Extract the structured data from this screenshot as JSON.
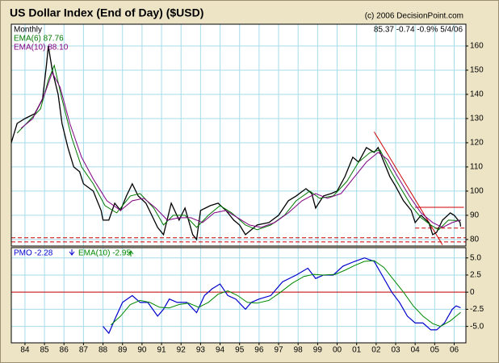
{
  "title": "US Dollar Index (End of Day) ($USD)",
  "copyright": "(c) 2006 DecisionPoint.com",
  "chart_data": [
    {
      "type": "line",
      "periodicity": "Monthly",
      "last_quote": "85.37 -0.74 -0.9% 5/4/06",
      "xlim": [
        1983.3,
        2006.6
      ],
      "xticks": [
        1984,
        1985,
        1986,
        1987,
        1988,
        1989,
        1990,
        1991,
        1992,
        1993,
        1994,
        1995,
        1996,
        1997,
        1998,
        1999,
        2000,
        2001,
        2002,
        2003,
        2004,
        2005,
        2006
      ],
      "ylim": [
        77.3,
        169
      ],
      "yticks": [
        80,
        90,
        100,
        110,
        120,
        130,
        140,
        150,
        160
      ],
      "grid": true,
      "series": [
        {
          "color": "#000000",
          "width": 1.3,
          "x": [
            1983.3,
            1983.6,
            1984.0,
            1984.5,
            1984.9,
            1985.1,
            1985.2,
            1985.4,
            1985.7,
            1985.9,
            1986.2,
            1986.5,
            1986.8,
            1987.0,
            1987.5,
            1987.9,
            1988.0,
            1988.3,
            1988.6,
            1988.9,
            1989.2,
            1989.5,
            1989.8,
            1990.2,
            1990.5,
            1990.8,
            1991.1,
            1991.5,
            1991.9,
            1992.2,
            1992.6,
            1992.8,
            1993.0,
            1993.5,
            1993.9,
            1994.3,
            1994.7,
            1995.0,
            1995.3,
            1995.6,
            1995.9,
            1996.5,
            1997.0,
            1997.5,
            1997.9,
            1998.4,
            1998.7,
            1998.9,
            1999.3,
            1999.7,
            2000.0,
            2000.4,
            2000.8,
            2001.1,
            2001.5,
            2001.9,
            2002.1,
            2002.4,
            2002.7,
            2003.0,
            2003.4,
            2003.8,
            2004.0,
            2004.3,
            2004.7,
            2004.9,
            2005.1,
            2005.4,
            2005.8,
            2006.0,
            2006.3,
            2006.33
          ],
          "values": [
            120,
            128,
            130,
            132,
            138,
            152,
            160,
            150,
            140,
            128,
            118,
            110,
            108,
            103,
            100,
            92,
            88,
            88,
            95,
            92,
            98,
            103,
            98,
            95,
            90,
            85,
            82,
            95,
            88,
            93,
            82,
            80,
            92,
            94,
            95,
            92,
            88,
            86,
            82,
            84,
            86,
            87,
            90,
            96,
            98,
            101,
            99,
            93,
            98,
            99,
            100,
            106,
            114,
            112,
            118,
            116,
            118,
            112,
            106,
            102,
            96,
            92,
            87,
            90,
            87,
            82,
            83,
            88,
            91,
            90,
            87,
            85.37
          ]
        },
        {
          "name": "EMA(6) 87.76",
          "color": "#007700",
          "width": 1,
          "x": [
            1983.6,
            1984.2,
            1984.8,
            1985.2,
            1985.5,
            1985.9,
            1986.4,
            1986.9,
            1987.5,
            1988.1,
            1988.7,
            1989.4,
            1989.9,
            1990.6,
            1991.1,
            1991.6,
            1992.2,
            1992.8,
            1993.4,
            1994.0,
            1994.6,
            1995.3,
            1995.9,
            1996.6,
            1997.3,
            1997.9,
            1998.6,
            1999.1,
            1999.8,
            2000.5,
            2001.1,
            2001.7,
            2002.2,
            2002.7,
            2003.2,
            2003.8,
            2004.3,
            2004.8,
            2005.2,
            2005.7,
            2006.33
          ],
          "values": [
            124,
            129,
            134,
            146,
            152,
            138,
            122,
            110,
            103,
            94,
            91,
            98,
            99,
            93,
            86,
            90,
            90,
            85,
            90,
            94,
            91,
            86,
            84,
            86,
            90,
            96,
            100,
            97,
            98,
            104,
            112,
            116,
            117,
            109,
            102,
            94,
            89,
            86,
            84,
            88,
            87.76
          ]
        },
        {
          "name": "EMA(10) 88.10",
          "color": "#800080",
          "width": 1,
          "x": [
            1983.8,
            1984.4,
            1985.0,
            1985.4,
            1985.8,
            1986.3,
            1986.9,
            1987.5,
            1988.2,
            1988.9,
            1989.5,
            1990.1,
            1990.7,
            1991.3,
            1991.9,
            1992.5,
            1993.1,
            1993.7,
            1994.3,
            1994.9,
            1995.5,
            1996.1,
            1996.8,
            1997.5,
            1998.2,
            1998.9,
            1999.5,
            2000.2,
            2000.9,
            2001.5,
            2002.1,
            2002.6,
            2003.1,
            2003.7,
            2004.3,
            2004.9,
            2005.4,
            2005.9,
            2006.33
          ],
          "values": [
            126,
            130,
            140,
            149,
            143,
            128,
            114,
            105,
            96,
            92,
            96,
            97,
            93,
            88,
            89,
            89,
            87,
            91,
            92,
            89,
            86,
            85,
            87,
            91,
            96,
            99,
            97,
            99,
            106,
            112,
            116,
            113,
            106,
            98,
            91,
            87,
            85,
            87,
            88.1
          ]
        }
      ],
      "reference_lines": [
        {
          "color": "#cc0000",
          "dashed": false,
          "x": [
            2001.9,
            2005.4
          ],
          "y": [
            124.5,
            77.8
          ]
        },
        {
          "color": "#cc0000",
          "dashed": false,
          "x": [
            2004.0,
            2006.5
          ],
          "y": [
            93.3,
            93.3
          ]
        },
        {
          "color": "#cc0000",
          "dashed": true,
          "x": [
            2004.0,
            2006.6
          ],
          "y": [
            84.7,
            84.7
          ]
        },
        {
          "color": "#cc0000",
          "dashed": true,
          "x": [
            1983.3,
            2006.6
          ],
          "y": [
            80.7,
            80.7
          ]
        },
        {
          "color": "#cc0000",
          "dashed": true,
          "x": [
            1983.3,
            2006.6
          ],
          "y": [
            79,
            79
          ]
        }
      ]
    },
    {
      "type": "line",
      "xlim": [
        1983.3,
        2006.6
      ],
      "xticks": [
        {
          "value": 1984,
          "label": "84"
        },
        {
          "value": 1985,
          "label": "85"
        },
        {
          "value": 1986,
          "label": "86"
        },
        {
          "value": 1987,
          "label": "87"
        },
        {
          "value": 1988,
          "label": "88"
        },
        {
          "value": 1989,
          "label": "89"
        },
        {
          "value": 1990,
          "label": "90"
        },
        {
          "value": 1991,
          "label": "91"
        },
        {
          "value": 1992,
          "label": "92"
        },
        {
          "value": 1993,
          "label": "93"
        },
        {
          "value": 1994,
          "label": "94"
        },
        {
          "value": 1995,
          "label": "95"
        },
        {
          "value": 1996,
          "label": "96"
        },
        {
          "value": 1997,
          "label": "97"
        },
        {
          "value": 1998,
          "label": "98"
        },
        {
          "value": 1999,
          "label": "99"
        },
        {
          "value": 2000,
          "label": "00"
        },
        {
          "value": 2001,
          "label": "01"
        },
        {
          "value": 2002,
          "label": "02"
        },
        {
          "value": 2003,
          "label": "03"
        },
        {
          "value": 2004,
          "label": "04"
        },
        {
          "value": 2005,
          "label": "05"
        },
        {
          "value": 2006,
          "label": "06"
        }
      ],
      "ylim": [
        -7.4,
        6.5
      ],
      "yticks": [
        {
          "value": 5,
          "label": "5.0"
        },
        2.5,
        0,
        -2.5,
        {
          "value": -5,
          "label": "-5.0"
        }
      ],
      "grid": true,
      "zero_line_color": "#cc0000",
      "series": [
        {
          "name": "PMO -2.28",
          "color": "#0000cc",
          "width": 1.2,
          "x": [
            1988.0,
            1988.3,
            1988.6,
            1989.0,
            1989.5,
            1989.9,
            1990.3,
            1990.8,
            1991.1,
            1991.4,
            1991.8,
            1992.3,
            1992.8,
            1993.2,
            1993.6,
            1994.0,
            1994.4,
            1994.8,
            1995.3,
            1995.6,
            1996.0,
            1996.6,
            1997.2,
            1997.9,
            1998.5,
            1998.9,
            1999.3,
            1999.8,
            2000.3,
            2000.9,
            2001.4,
            2001.9,
            2002.3,
            2002.8,
            2003.2,
            2003.6,
            2004.0,
            2004.4,
            2004.8,
            2005.1,
            2005.5,
            2005.9,
            2006.1,
            2006.33
          ],
          "values": [
            -5,
            -6,
            -4,
            -1.5,
            -0.5,
            -1.5,
            -1.5,
            -3.5,
            -2.5,
            -1,
            -1.5,
            -1.5,
            -3,
            -0.5,
            0.5,
            1.2,
            -0.5,
            -1,
            -2.5,
            -1.5,
            -1,
            -0.5,
            1.5,
            2.5,
            3.5,
            2,
            2.5,
            2.5,
            3.8,
            4.5,
            5,
            4.5,
            2.5,
            0,
            -1.5,
            -3.5,
            -4.5,
            -4.5,
            -5.5,
            -5.5,
            -4.5,
            -2.5,
            -2,
            -2.28
          ]
        },
        {
          "name": "EMA(10) -2.95",
          "color": "#008800",
          "width": 1,
          "x": [
            1988.4,
            1988.9,
            1989.4,
            1989.9,
            1990.4,
            1990.9,
            1991.4,
            1991.9,
            1992.4,
            1992.9,
            1993.4,
            1993.9,
            1994.4,
            1994.9,
            1995.4,
            1995.9,
            1996.5,
            1997.1,
            1997.7,
            1998.3,
            1998.8,
            1999.3,
            1999.9,
            2000.4,
            2000.9,
            2001.4,
            2001.9,
            2002.4,
            2002.9,
            2003.4,
            2003.9,
            2004.4,
            2004.9,
            2005.3,
            2005.8,
            2006.33
          ],
          "values": [
            -4.8,
            -3.5,
            -1.8,
            -1.2,
            -1.5,
            -2.2,
            -2.3,
            -1.8,
            -1.6,
            -2.2,
            -1.5,
            -0.3,
            0.2,
            -0.5,
            -1.5,
            -1.6,
            -1.2,
            0,
            1.3,
            2.3,
            2.6,
            2.5,
            2.6,
            3.2,
            3.9,
            4.5,
            4.6,
            3.6,
            1.8,
            0,
            -2,
            -3.5,
            -4.6,
            -5,
            -4.2,
            -2.95
          ]
        }
      ]
    }
  ]
}
